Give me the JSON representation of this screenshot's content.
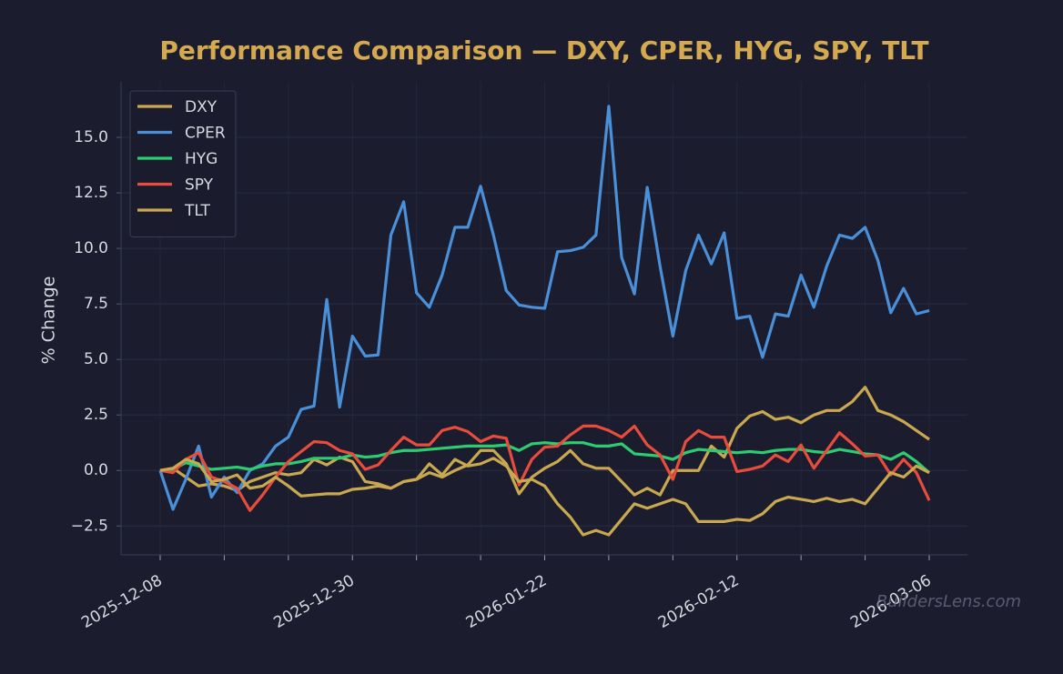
{
  "chart_data": {
    "type": "line",
    "title": "Performance Comparison — DXY, CPER, HYG, SPY, TLT",
    "y_label": "% Change",
    "watermark": "BuildersLens.com",
    "x": [
      "2025-12-08",
      "2025-12-09",
      "2025-12-10",
      "2025-12-11",
      "2025-12-12",
      "2025-12-15",
      "2025-12-16",
      "2025-12-17",
      "2025-12-18",
      "2025-12-19",
      "2025-12-22",
      "2025-12-23",
      "2025-12-24",
      "2025-12-26",
      "2025-12-29",
      "2025-12-30",
      "2025-12-31",
      "2026-01-02",
      "2026-01-05",
      "2026-01-06",
      "2026-01-07",
      "2026-01-08",
      "2026-01-09",
      "2026-01-12",
      "2026-01-13",
      "2026-01-14",
      "2026-01-15",
      "2026-01-16",
      "2026-01-20",
      "2026-01-21",
      "2026-01-22",
      "2026-01-23",
      "2026-01-26",
      "2026-01-27",
      "2026-01-28",
      "2026-01-29",
      "2026-01-30",
      "2026-02-02",
      "2026-02-03",
      "2026-02-04",
      "2026-02-05",
      "2026-02-06",
      "2026-02-09",
      "2026-02-10",
      "2026-02-11",
      "2026-02-12",
      "2026-02-13",
      "2026-02-17",
      "2026-02-18",
      "2026-02-19",
      "2026-02-20",
      "2026-02-23",
      "2026-02-24",
      "2026-02-25",
      "2026-02-26",
      "2026-02-27",
      "2026-03-02",
      "2026-03-03",
      "2026-03-04",
      "2026-03-05",
      "2026-03-06"
    ],
    "xticks": [
      "2025-12-08",
      "2025-12-30",
      "2026-01-22",
      "2026-02-12",
      "2026-03-06"
    ],
    "ylim": [
      -3.8,
      17.5
    ],
    "yticks": [
      {
        "value": -2.5,
        "label": "−2.5"
      },
      {
        "value": 0,
        "label": "0.0"
      },
      {
        "value": 2.5,
        "label": "2.5"
      },
      {
        "value": 5,
        "label": "5.0"
      },
      {
        "value": 7.5,
        "label": "7.5"
      },
      {
        "value": 10,
        "label": "10.0"
      },
      {
        "value": 12.5,
        "label": "12.5"
      },
      {
        "value": 15,
        "label": "15.0"
      }
    ],
    "grid": true,
    "legend": "upper left",
    "series": [
      {
        "name": "DXY",
        "color": "#c9a84f",
        "values": [
          0,
          0.1,
          -0.3,
          -0.7,
          -0.6,
          -0.7,
          -0.9,
          -0.5,
          -0.3,
          -0.1,
          -0.2,
          -0.1,
          0.5,
          0.25,
          0.6,
          0.4,
          -0.5,
          -0.6,
          -0.8,
          -0.5,
          -0.4,
          -0.1,
          -0.3,
          0,
          0.25,
          0.9,
          0.9,
          0.3,
          -1.05,
          -0.3,
          0.1,
          0.4,
          0.9,
          0.3,
          0.1,
          0.1,
          -0.5,
          -1.1,
          -0.8,
          -1.1,
          0,
          0,
          0,
          1.1,
          0.6,
          1.9,
          2.45,
          2.65,
          2.3,
          2.4,
          2.15,
          2.5,
          2.7,
          2.7,
          3.1,
          3.75,
          2.7,
          2.5,
          2.2,
          1.8,
          1.4
        ]
      },
      {
        "name": "CPER",
        "color": "#4a90d9",
        "values": [
          0,
          -1.75,
          -0.4,
          1.1,
          -1.2,
          -0.3,
          -1.0,
          0,
          0.3,
          1.1,
          1.5,
          2.75,
          2.9,
          7.7,
          2.85,
          6.05,
          5.15,
          5.2,
          10.6,
          12.1,
          8.0,
          7.35,
          8.8,
          10.95,
          10.95,
          12.8,
          10.6,
          8.1,
          7.45,
          7.35,
          7.3,
          9.85,
          9.9,
          10.05,
          10.6,
          16.4,
          9.6,
          7.95,
          12.75,
          9.2,
          6.05,
          9.0,
          10.6,
          9.3,
          10.7,
          6.85,
          6.95,
          5.1,
          7.05,
          6.95,
          8.8,
          7.35,
          9.2,
          10.6,
          10.45,
          10.95,
          9.45,
          7.1,
          8.2,
          7.05,
          7.2
        ]
      },
      {
        "name": "HYG",
        "color": "#2ecc71",
        "values": [
          0,
          0.05,
          0.35,
          0.2,
          0.05,
          0.1,
          0.15,
          0.05,
          0.2,
          0.3,
          0.3,
          0.4,
          0.55,
          0.55,
          0.55,
          0.7,
          0.6,
          0.65,
          0.8,
          0.9,
          0.9,
          0.95,
          1.0,
          1.05,
          1.1,
          1.1,
          1.1,
          1.15,
          0.9,
          1.2,
          1.25,
          1.2,
          1.25,
          1.25,
          1.1,
          1.1,
          1.2,
          0.75,
          0.7,
          0.65,
          0.5,
          0.8,
          0.95,
          0.9,
          0.85,
          0.8,
          0.85,
          0.8,
          0.9,
          0.95,
          0.95,
          0.85,
          0.8,
          0.95,
          0.85,
          0.75,
          0.7,
          0.5,
          0.8,
          0.4,
          -0.1
        ]
      },
      {
        "name": "SPY",
        "color": "#e74c3c",
        "values": [
          0,
          -0.1,
          0.5,
          0.8,
          -0.3,
          -0.5,
          -0.8,
          -1.8,
          -1.1,
          -0.3,
          0.4,
          0.85,
          1.3,
          1.25,
          0.9,
          0.75,
          0.05,
          0.25,
          0.9,
          1.5,
          1.15,
          1.15,
          1.8,
          1.95,
          1.75,
          1.3,
          1.55,
          1.45,
          -0.65,
          0.5,
          1.05,
          1.1,
          1.6,
          2.0,
          2.0,
          1.8,
          1.5,
          2.0,
          1.15,
          0.7,
          -0.4,
          1.3,
          1.8,
          1.5,
          1.5,
          -0.05,
          0.05,
          0.2,
          0.7,
          0.4,
          1.15,
          0.1,
          0.9,
          1.7,
          1.2,
          0.65,
          0.7,
          -0.2,
          0.5,
          -0.1,
          -1.35
        ]
      },
      {
        "name": "TLT",
        "color": "#c9a84f",
        "values": [
          0,
          0.1,
          0.5,
          0.3,
          -0.5,
          -0.4,
          -0.2,
          -0.8,
          -0.7,
          -0.3,
          -0.7,
          -1.15,
          -1.1,
          -1.05,
          -1.05,
          -0.85,
          -0.8,
          -0.7,
          -0.8,
          -0.5,
          -0.4,
          0.3,
          -0.2,
          0.5,
          0.2,
          0.3,
          0.55,
          0.2,
          -0.5,
          -0.4,
          -0.7,
          -1.5,
          -2.1,
          -2.9,
          -2.7,
          -2.9,
          -2.2,
          -1.5,
          -1.7,
          -1.5,
          -1.3,
          -1.5,
          -2.3,
          -2.3,
          -2.3,
          -2.2,
          -2.25,
          -1.95,
          -1.4,
          -1.2,
          -1.3,
          -1.4,
          -1.25,
          -1.4,
          -1.3,
          -1.5,
          -0.8,
          -0.1,
          -0.3,
          0.2,
          -0.1
        ]
      }
    ]
  }
}
